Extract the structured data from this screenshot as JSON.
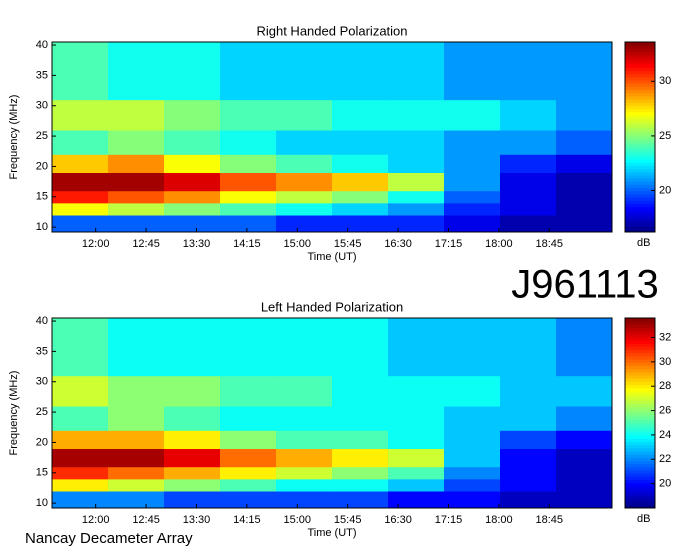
{
  "chart_data": [
    {
      "type": "heatmap",
      "title": "Right Handed Polarization",
      "xlabel": "Time (UT)",
      "ylabel": "Frequency (MHz)",
      "colormap": "jet",
      "colorbar_label": "dB",
      "xlim": [
        681,
        1181
      ],
      "ylim": [
        9.2,
        40.5
      ],
      "zlim": [
        16.2,
        33.6
      ],
      "xticks": [
        {
          "value": 720,
          "label": "12:00"
        },
        {
          "value": 765,
          "label": "12:45"
        },
        {
          "value": 810,
          "label": "13:30"
        },
        {
          "value": 855,
          "label": "14:15"
        },
        {
          "value": 900,
          "label": "15:00"
        },
        {
          "value": 945,
          "label": "15:45"
        },
        {
          "value": 990,
          "label": "16:30"
        },
        {
          "value": 1035,
          "label": "17:15"
        },
        {
          "value": 1080,
          "label": "18:00"
        },
        {
          "value": 1125,
          "label": "18:45"
        }
      ],
      "yticks": [
        10,
        15,
        20,
        25,
        30,
        35,
        40
      ],
      "zticks": [
        20,
        25,
        30
      ],
      "x_edges": [
        681,
        731,
        781,
        831,
        881,
        931,
        981,
        1031,
        1081,
        1131,
        1181
      ],
      "y_edges": [
        9.2,
        12,
        14,
        16,
        19,
        22,
        26,
        31,
        40.5
      ],
      "z": [
        [
          20,
          20,
          20,
          20,
          19,
          19,
          19,
          18,
          17,
          17
        ],
        [
          27,
          26,
          25,
          24,
          23,
          22,
          21,
          19,
          18,
          17
        ],
        [
          31,
          30,
          29,
          27,
          26,
          25,
          23,
          20,
          18,
          17
        ],
        [
          33,
          33,
          32,
          30,
          29,
          28,
          26,
          21,
          18,
          17
        ],
        [
          28,
          29,
          27,
          25,
          24,
          23,
          22,
          21,
          19,
          18
        ],
        [
          24,
          25,
          24,
          23,
          22,
          22,
          22,
          21,
          21,
          20
        ],
        [
          26,
          26,
          25,
          24,
          24,
          23,
          23,
          23,
          22,
          21
        ],
        [
          24,
          23,
          23,
          22,
          22,
          22,
          22,
          21,
          21,
          21
        ]
      ]
    },
    {
      "type": "heatmap",
      "title": "Left Handed Polarization",
      "xlabel": "Time (UT)",
      "ylabel": "Frequency (MHz)",
      "colormap": "jet",
      "colorbar_label": "dB",
      "xlim": [
        681,
        1181
      ],
      "ylim": [
        9.2,
        40.5
      ],
      "zlim": [
        18,
        33.6
      ],
      "xticks": [
        {
          "value": 720,
          "label": "12:00"
        },
        {
          "value": 765,
          "label": "12:45"
        },
        {
          "value": 810,
          "label": "13:30"
        },
        {
          "value": 855,
          "label": "14:15"
        },
        {
          "value": 900,
          "label": "15:00"
        },
        {
          "value": 945,
          "label": "15:45"
        },
        {
          "value": 990,
          "label": "16:30"
        },
        {
          "value": 1035,
          "label": "17:15"
        },
        {
          "value": 1080,
          "label": "18:00"
        },
        {
          "value": 1125,
          "label": "18:45"
        }
      ],
      "yticks": [
        10,
        15,
        20,
        25,
        30,
        35,
        40
      ],
      "zticks": [
        20,
        22,
        24,
        26,
        28,
        30,
        32
      ],
      "x_edges": [
        681,
        731,
        781,
        831,
        881,
        931,
        981,
        1031,
        1081,
        1131,
        1181
      ],
      "y_edges": [
        9.2,
        12,
        14,
        16,
        19,
        22,
        26,
        31,
        40.5
      ],
      "z": [
        [
          22,
          22,
          21,
          21,
          21,
          21,
          20,
          20,
          19,
          19
        ],
        [
          28,
          27,
          26,
          25,
          24,
          24,
          23,
          21,
          20,
          19
        ],
        [
          31,
          30,
          29,
          28,
          27,
          26,
          25,
          22,
          20,
          19
        ],
        [
          33,
          33,
          32,
          30,
          29,
          28,
          27,
          23,
          20,
          19
        ],
        [
          29,
          29,
          28,
          26,
          25,
          25,
          24,
          23,
          21,
          20
        ],
        [
          25,
          26,
          25,
          24,
          24,
          24,
          24,
          23,
          23,
          22
        ],
        [
          27,
          26,
          26,
          25,
          25,
          24,
          24,
          24,
          23,
          23
        ],
        [
          25,
          24,
          24,
          24,
          24,
          24,
          23,
          23,
          23,
          22
        ]
      ]
    }
  ],
  "label": "J961113",
  "footer": "Nancay Decameter Array"
}
